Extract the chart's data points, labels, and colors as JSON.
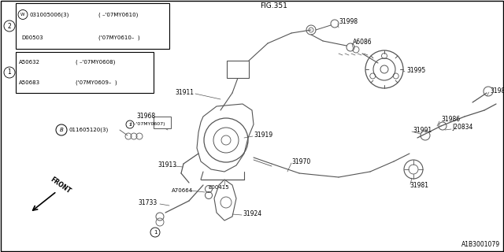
{
  "bg_color": "#ffffff",
  "border_color": "#000000",
  "line_color": "#555555",
  "text_color": "#000000",
  "fig_ref": "FIG.351",
  "part_id": "A1B3001079",
  "figsize": [
    6.4,
    3.2
  ],
  "dpi": 100,
  "xlim": [
    0,
    640
  ],
  "ylim": [
    0,
    320
  ]
}
